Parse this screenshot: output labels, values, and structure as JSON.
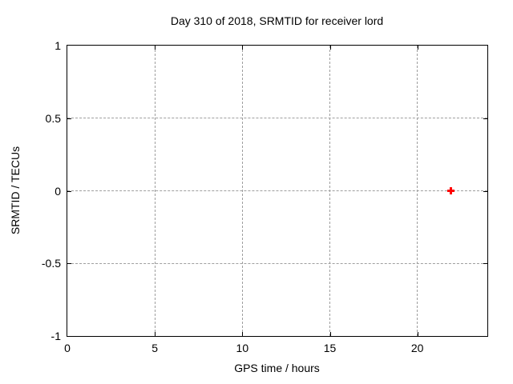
{
  "window": {
    "background": "#ffffff"
  },
  "colors": {
    "frame": "#000000",
    "grid": "#9e9e9e",
    "text": "#000000",
    "marker": "#ff0000"
  },
  "chart_data": {
    "type": "scatter",
    "title": "Day 310 of 2018, SRMTID for receiver lord",
    "xlabel": "GPS time / hours",
    "ylabel": "SRMTID / TECUs",
    "xlim": [
      0,
      24
    ],
    "ylim": [
      -1,
      1
    ],
    "xticks": [
      0,
      5,
      10,
      15,
      20
    ],
    "yticks": [
      1,
      0.5,
      0,
      -0.5,
      -1
    ],
    "grid": true,
    "grid_style": "dashed",
    "legend": "none",
    "series": [
      {
        "name": "SRMTID",
        "marker": "plus",
        "color": "#ff0000",
        "points": [
          {
            "x": 21.9,
            "y": 0
          }
        ]
      }
    ]
  }
}
